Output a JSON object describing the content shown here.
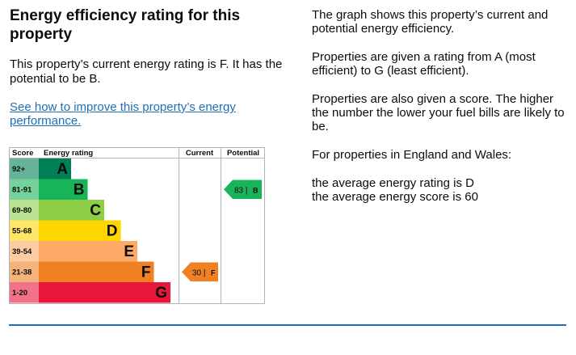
{
  "title": "Energy efficiency rating for this property",
  "summary": "This property’s current energy rating is F. It has the potential to be B.",
  "improve_link": "See how to improve this property’s energy performance.",
  "info": {
    "p1": "The graph shows this property’s current and potential energy efficiency.",
    "p2": "Properties are given a rating from A (most efficient) to G (least efficient).",
    "p3": "Properties are also given a score. The higher the number the lower your fuel bills are likely to be.",
    "p4": "For properties in England and Wales:",
    "avg_rating": "the average energy rating is D",
    "avg_score": "the average energy score is 60"
  },
  "chart_data": {
    "type": "table",
    "headers": {
      "score": "Score",
      "rating": "Energy rating",
      "current": "Current",
      "potential": "Potential"
    },
    "bands": [
      {
        "range": "92+",
        "letter": "A",
        "color": "#008054"
      },
      {
        "range": "81-91",
        "letter": "B",
        "color": "#19b459"
      },
      {
        "range": "69-80",
        "letter": "C",
        "color": "#8dce46"
      },
      {
        "range": "55-68",
        "letter": "D",
        "color": "#ffd500"
      },
      {
        "range": "39-54",
        "letter": "E",
        "color": "#fcaa65"
      },
      {
        "range": "21-38",
        "letter": "F",
        "color": "#ef8023"
      },
      {
        "range": "1-20",
        "letter": "G",
        "color": "#e9153b"
      }
    ],
    "current": {
      "score": "30",
      "letter": "F",
      "color": "#ef8023"
    },
    "potential": {
      "score": "83",
      "letter": "B",
      "color": "#19b459"
    }
  }
}
